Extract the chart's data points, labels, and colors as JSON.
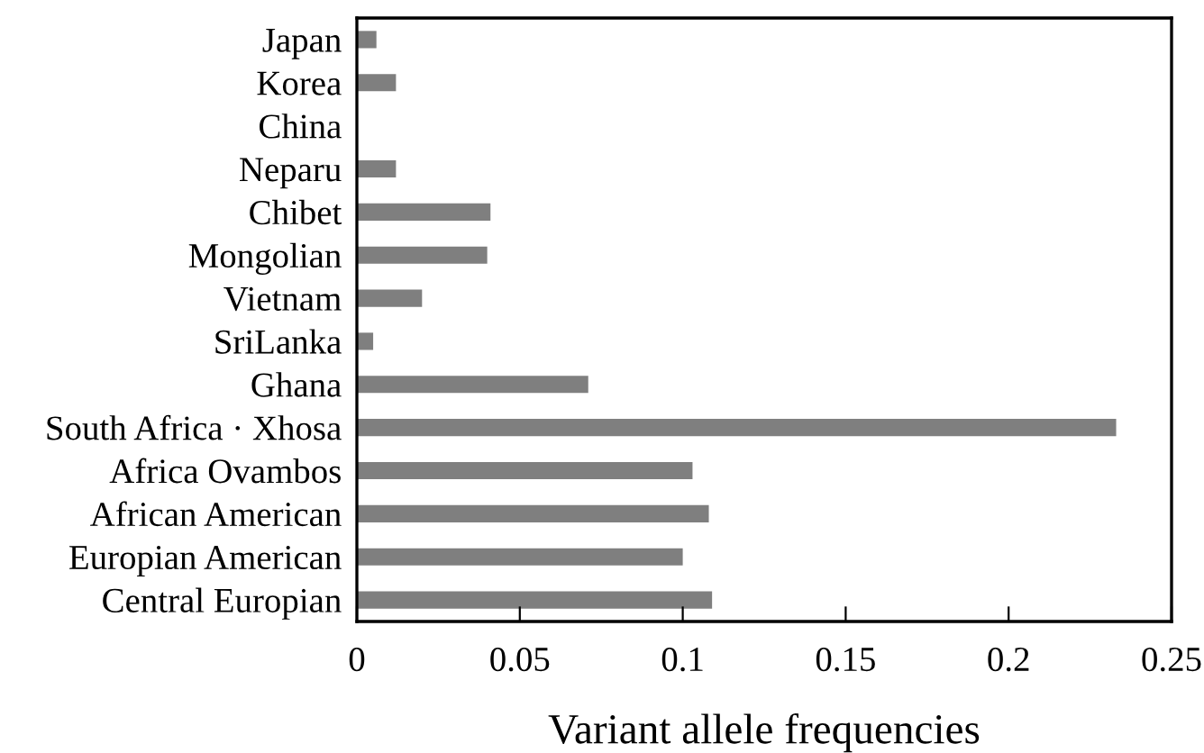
{
  "chart_data": {
    "type": "bar",
    "orientation": "horizontal",
    "xlabel": "Variant allele frequencies",
    "categories": [
      "Japan",
      "Korea",
      "China",
      "Neparu",
      "Chibet",
      "Mongolian",
      "Vietnam",
      "SriLanka",
      "Ghana",
      "South Africa · Xhosa",
      "Africa Ovambos",
      "African American",
      "Europian American",
      "Central Europian"
    ],
    "values": [
      0.006,
      0.012,
      0,
      0.012,
      0.041,
      0.04,
      0.02,
      0.005,
      0.071,
      0.233,
      0.103,
      0.108,
      0.1,
      0.109
    ],
    "color": "#7f7f7f",
    "xlim": [
      0,
      0.25
    ],
    "xticks": [
      0,
      0.05,
      0.1,
      0.15,
      0.2,
      0.25
    ],
    "grid": false
  }
}
